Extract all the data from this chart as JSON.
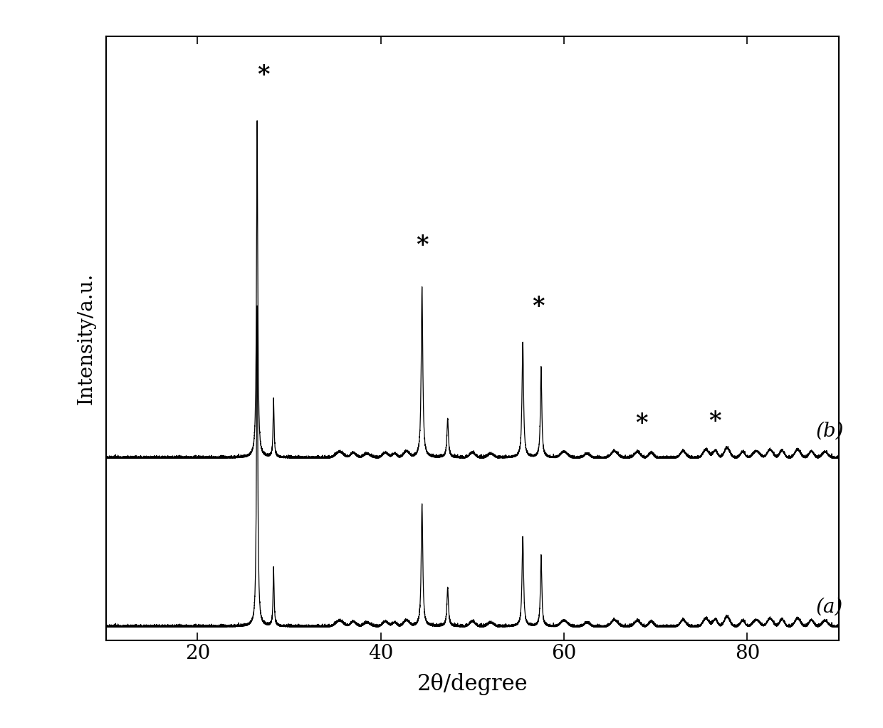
{
  "xlabel": "2θ/degree",
  "ylabel": "Intensity/a.u.",
  "xmin": 10,
  "xmax": 90,
  "label_a": "(a)",
  "label_b": "(b)",
  "background_color": "#ffffff",
  "figsize": [
    12.4,
    10.22
  ],
  "dpi": 100
}
